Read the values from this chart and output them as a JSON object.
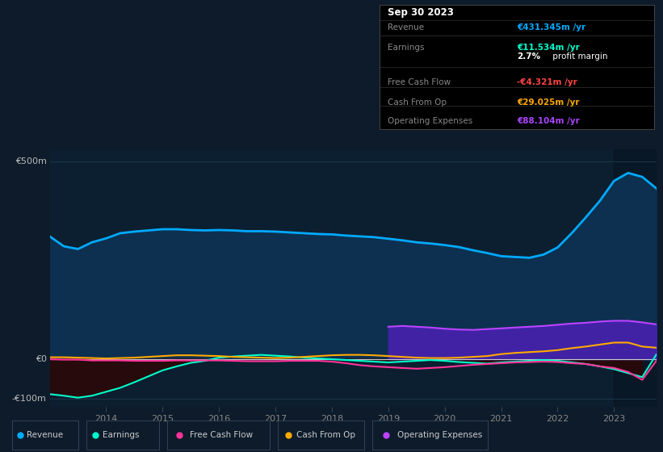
{
  "bg_color": "#0d1b2a",
  "plot_bg_color": "#0c1f30",
  "grid_color": "#1e3a50",
  "years": [
    2013.0,
    2013.25,
    2013.5,
    2013.75,
    2014.0,
    2014.25,
    2014.5,
    2014.75,
    2015.0,
    2015.25,
    2015.5,
    2015.75,
    2016.0,
    2016.25,
    2016.5,
    2016.75,
    2017.0,
    2017.25,
    2017.5,
    2017.75,
    2018.0,
    2018.25,
    2018.5,
    2018.75,
    2019.0,
    2019.25,
    2019.5,
    2019.75,
    2020.0,
    2020.25,
    2020.5,
    2020.75,
    2021.0,
    2021.25,
    2021.5,
    2021.75,
    2022.0,
    2022.25,
    2022.5,
    2022.75,
    2023.0,
    2023.25,
    2023.5,
    2023.75
  ],
  "revenue": [
    310,
    285,
    278,
    295,
    305,
    318,
    322,
    325,
    328,
    328,
    326,
    325,
    326,
    325,
    323,
    323,
    322,
    320,
    318,
    316,
    315,
    312,
    310,
    308,
    304,
    300,
    295,
    292,
    288,
    283,
    275,
    268,
    260,
    258,
    256,
    264,
    282,
    318,
    358,
    400,
    450,
    470,
    460,
    431
  ],
  "revenue_color": "#00aaff",
  "revenue_fill_color": "#0d3050",
  "earnings": [
    -88,
    -92,
    -97,
    -92,
    -82,
    -72,
    -58,
    -43,
    -28,
    -18,
    -9,
    -4,
    4,
    7,
    9,
    11,
    9,
    7,
    4,
    2,
    0,
    -2,
    -4,
    -6,
    -8,
    -6,
    -4,
    -2,
    -4,
    -7,
    -9,
    -11,
    -8,
    -6,
    -4,
    -2,
    -4,
    -8,
    -12,
    -18,
    -25,
    -35,
    -45,
    12
  ],
  "earnings_color": "#00ffcc",
  "earnings_fill_color": "#2a0808",
  "free_cash_flow": [
    0,
    -1,
    -1,
    -3,
    -3,
    -3,
    -4,
    -4,
    -4,
    -3,
    -3,
    -3,
    -3,
    -4,
    -5,
    -5,
    -5,
    -4,
    -4,
    -4,
    -6,
    -10,
    -15,
    -18,
    -20,
    -22,
    -24,
    -22,
    -20,
    -17,
    -14,
    -12,
    -10,
    -8,
    -7,
    -6,
    -7,
    -10,
    -12,
    -18,
    -22,
    -32,
    -52,
    -4
  ],
  "free_cash_flow_color": "#ff3399",
  "cash_from_op": [
    5,
    5,
    4,
    3,
    2,
    3,
    4,
    6,
    8,
    10,
    10,
    9,
    8,
    6,
    5,
    4,
    3,
    4,
    6,
    8,
    10,
    11,
    11,
    10,
    8,
    6,
    4,
    3,
    3,
    4,
    6,
    8,
    13,
    16,
    18,
    20,
    23,
    28,
    32,
    37,
    42,
    42,
    32,
    29
  ],
  "cash_from_op_color": "#ffaa00",
  "op_expenses": [
    0,
    0,
    0,
    0,
    0,
    0,
    0,
    0,
    0,
    0,
    0,
    0,
    0,
    0,
    0,
    0,
    0,
    0,
    0,
    0,
    0,
    0,
    0,
    0,
    82,
    84,
    82,
    80,
    77,
    75,
    74,
    76,
    78,
    80,
    82,
    84,
    87,
    90,
    92,
    95,
    97,
    97,
    93,
    88
  ],
  "op_expenses_color": "#bb44ff",
  "op_expenses_fill": "#4422aa",
  "op_expenses_start_year": 2019.0,
  "xlim_start": 2013.0,
  "xlim_end": 2023.75,
  "ylim": [
    -120,
    530
  ],
  "ylabel_500": "€500m",
  "ylabel_0": "€0",
  "ylabel_neg100": "-€100m",
  "xlabel_years": [
    "2014",
    "2015",
    "2016",
    "2017",
    "2018",
    "2019",
    "2020",
    "2021",
    "2022",
    "2023"
  ],
  "xlabel_year_vals": [
    2014,
    2015,
    2016,
    2017,
    2018,
    2019,
    2020,
    2021,
    2022,
    2023
  ],
  "shade_start": 2023.0,
  "info_box": {
    "date": "Sep 30 2023",
    "revenue_label": "Revenue",
    "revenue_val": "€431.345m /yr",
    "revenue_val_color": "#00aaff",
    "earnings_label": "Earnings",
    "earnings_val": "€11.534m /yr",
    "earnings_val_color": "#00ffcc",
    "profit_margin_bold": "2.7%",
    "profit_margin_rest": " profit margin",
    "fcf_label": "Free Cash Flow",
    "fcf_val": "-€4.321m /yr",
    "fcf_val_color": "#ff4444",
    "cashop_label": "Cash From Op",
    "cashop_val": "€29.025m /yr",
    "cashop_val_color": "#ffaa00",
    "opex_label": "Operating Expenses",
    "opex_val": "€88.104m /yr",
    "opex_val_color": "#aa44ff"
  },
  "legend": [
    {
      "label": "Revenue",
      "color": "#00aaff"
    },
    {
      "label": "Earnings",
      "color": "#00ffcc"
    },
    {
      "label": "Free Cash Flow",
      "color": "#ff3399"
    },
    {
      "label": "Cash From Op",
      "color": "#ffaa00"
    },
    {
      "label": "Operating Expenses",
      "color": "#bb44ff"
    }
  ]
}
